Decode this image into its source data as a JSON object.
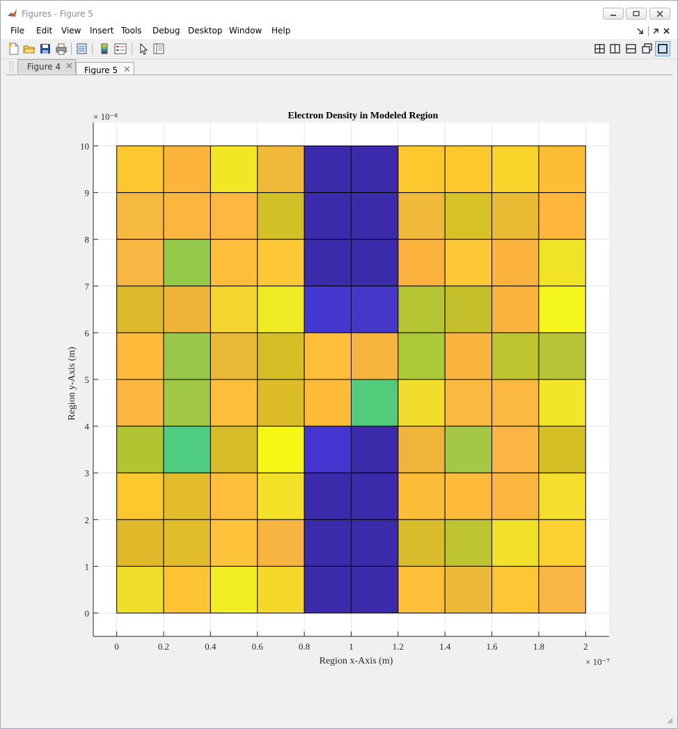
{
  "window": {
    "title": "Figures - Figure 5"
  },
  "menu": [
    "File",
    "Edit",
    "View",
    "Insert",
    "Tools",
    "Debug",
    "Desktop",
    "Window",
    "Help"
  ],
  "toolbar": {
    "icons": [
      "new-figure-icon",
      "open-file-icon",
      "save-icon",
      "print-icon",
      "link-plot-icon",
      "insert-colorbar-icon",
      "insert-legend-icon",
      "edit-plot-arrow-icon",
      "property-inspector-icon",
      "tile-grid-icon",
      "tile-columns-icon",
      "tile-rows-icon",
      "float-icon",
      "maximize-icon"
    ]
  },
  "tabs": [
    {
      "label": "Figure 4",
      "active": false
    },
    {
      "label": "Figure 5",
      "active": true
    }
  ],
  "chart_data": {
    "type": "heatmap",
    "title": "Electron Density in Modeled Region",
    "xlabel": "Region x-Axis (m)",
    "ylabel": "Region y-Axis (m)",
    "x_exponent": "× 10⁻⁷",
    "y_exponent": "× 10⁻⁸",
    "xlim": [
      -0.1,
      2.1
    ],
    "ylim": [
      -0.5,
      10.5
    ],
    "x_ticks": [
      "0",
      "0.2",
      "0.4",
      "0.6",
      "0.8",
      "1",
      "1.2",
      "1.4",
      "1.6",
      "1.8",
      "2"
    ],
    "y_ticks": [
      "0",
      "1",
      "2",
      "3",
      "4",
      "5",
      "6",
      "7",
      "8",
      "9",
      "10"
    ],
    "grid": true,
    "x_edges": [
      0,
      0.2,
      0.4,
      0.6,
      0.8,
      1.0,
      1.2,
      1.4,
      1.6,
      1.8,
      2.0
    ],
    "y_edges": [
      0,
      1,
      2,
      3,
      4,
      5,
      6,
      7,
      8,
      9,
      10
    ],
    "rows_top_to_bottom": [
      [
        "#fdc82f",
        "#fcb43a",
        "#f2e725",
        "#f0b93a",
        "#3b2aaa",
        "#3b2aaa",
        "#fdc72e",
        "#fdc72e",
        "#f9d42b",
        "#fdbd34"
      ],
      [
        "#f5b940",
        "#fdb63d",
        "#fdb840",
        "#d1c126",
        "#3b2aaa",
        "#3b2aaa",
        "#f0b93a",
        "#d6c126",
        "#ebba34",
        "#feb63d"
      ],
      [
        "#f9b643",
        "#94c949",
        "#febe3b",
        "#fec836",
        "#3b2aaa",
        "#3b2aaa",
        "#fdb23e",
        "#fec836",
        "#fdb43e",
        "#f1e426"
      ],
      [
        "#dcb92a",
        "#f0b33a",
        "#f4d530",
        "#f0ea24",
        "#4538d0",
        "#4538c8",
        "#b5c432",
        "#c5bf2c",
        "#fbb340",
        "#f4f51c"
      ],
      [
        "#feba3a",
        "#98c74b",
        "#eab935",
        "#d6be26",
        "#febe3a",
        "#f7b43f",
        "#aec938",
        "#fab33f",
        "#bec52e",
        "#b8c336"
      ],
      [
        "#fcb741",
        "#a1c844",
        "#febe3a",
        "#dcbd27",
        "#febc38",
        "#52cc7b",
        "#f2dd2c",
        "#fbb940",
        "#fbb941",
        "#f3e527"
      ],
      [
        "#b3c433",
        "#4dcc82",
        "#d8bc27",
        "#f7f615",
        "#4435d0",
        "#3b2aaa",
        "#f0b43a",
        "#a4c845",
        "#fbb542",
        "#d4bf25"
      ],
      [
        "#fdc82e",
        "#e3bc2c",
        "#febe3a",
        "#f3e127",
        "#3b2aaa",
        "#3b2aaa",
        "#fdbd39",
        "#feba3b",
        "#fbb740",
        "#f5df2c"
      ],
      [
        "#dfb92a",
        "#e0bc2a",
        "#fec33a",
        "#f7b440",
        "#3b2aaa",
        "#3b2aaa",
        "#d9bc2b",
        "#bec330",
        "#f2e129",
        "#fcd232"
      ],
      [
        "#f0df2a",
        "#fec333",
        "#f2ed22",
        "#f6d82c",
        "#3b2aaa",
        "#3b2aaa",
        "#febe39",
        "#ecb838",
        "#fec535",
        "#f9b646"
      ]
    ]
  }
}
